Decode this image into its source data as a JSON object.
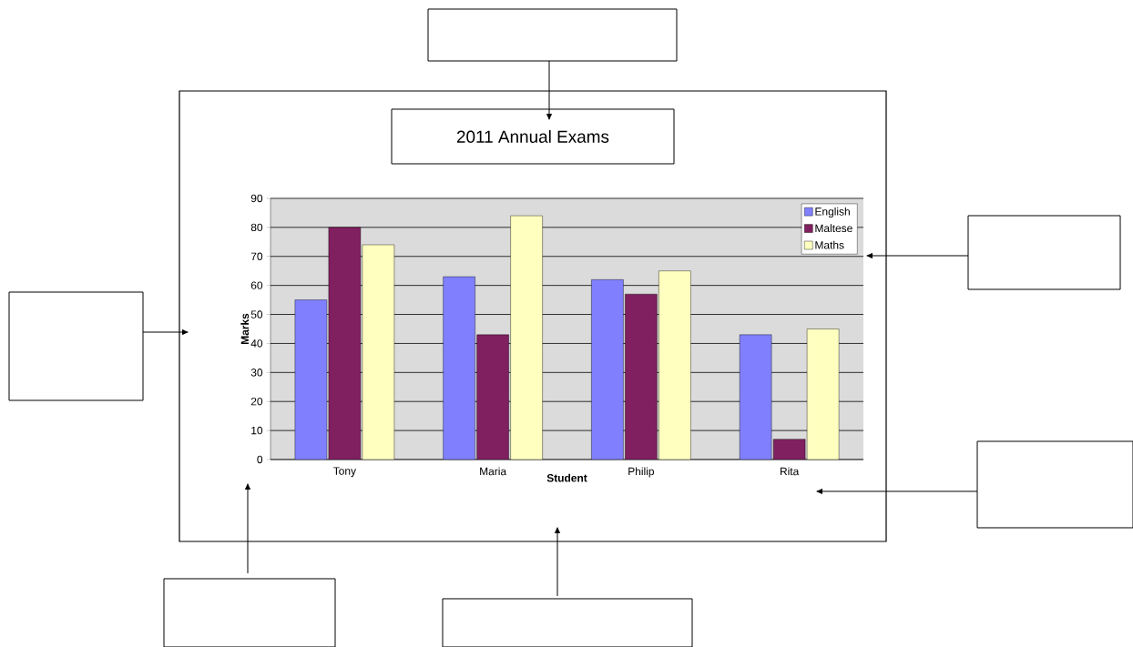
{
  "chart_data": {
    "type": "bar",
    "title": "2011 Annual Exams",
    "xlabel": "Student",
    "ylabel": "Marks",
    "categories": [
      "Tony",
      "Maria",
      "Philip",
      "Rita"
    ],
    "series": [
      {
        "name": "English",
        "color": "#8080ff",
        "values": [
          55,
          63,
          62,
          43
        ]
      },
      {
        "name": "Maltese",
        "color": "#802060",
        "values": [
          80,
          43,
          57,
          7
        ]
      },
      {
        "name": "Maths",
        "color": "#ffffc0",
        "values": [
          74,
          84,
          65,
          45
        ]
      }
    ],
    "ylim": [
      0,
      90
    ],
    "yticks": [
      0,
      10,
      20,
      30,
      40,
      50,
      60,
      70,
      80,
      90
    ],
    "grid": "y",
    "legend": "top right"
  }
}
